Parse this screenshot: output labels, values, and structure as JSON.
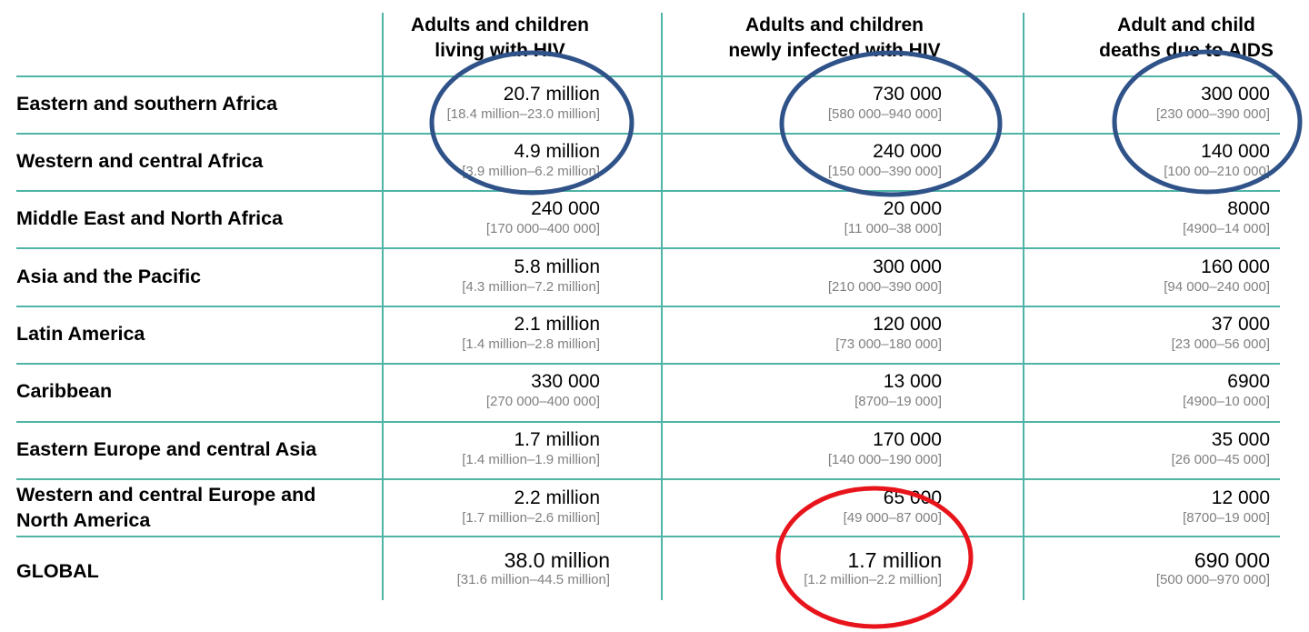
{
  "headers": [
    [
      "Adults and children",
      "living with HIV"
    ],
    [
      "Adults and children",
      "newly infected with HIV"
    ],
    [
      "Adult and child",
      "deaths due to AIDS"
    ]
  ],
  "rows": [
    {
      "label": [
        "Eastern and southern Africa"
      ],
      "cells": [
        [
          "20.7 million",
          "[18.4 million–23.0 million]"
        ],
        [
          "730 000",
          "[580 000–940 000]"
        ],
        [
          "300 000",
          "[230 000–390 000]"
        ]
      ]
    },
    {
      "label": [
        "Western and central Africa"
      ],
      "cells": [
        [
          "4.9 million",
          "[3.9 million–6.2 million]"
        ],
        [
          "240 000",
          "[150 000–390 000]"
        ],
        [
          "140 000",
          "[100 00–210 000]"
        ]
      ]
    },
    {
      "label": [
        "Middle East and North Africa"
      ],
      "cells": [
        [
          "240 000",
          "[170 000–400 000]"
        ],
        [
          "20 000",
          "[11 000–38 000]"
        ],
        [
          "8000",
          "[4900–14 000]"
        ]
      ]
    },
    {
      "label": [
        "Asia and the Pacific"
      ],
      "cells": [
        [
          "5.8 million",
          "[4.3 million–7.2 million]"
        ],
        [
          "300 000",
          "[210 000–390 000]"
        ],
        [
          "160 000",
          "[94 000–240 000]"
        ]
      ]
    },
    {
      "label": [
        "Latin America"
      ],
      "cells": [
        [
          "2.1 million",
          "[1.4 million–2.8 million]"
        ],
        [
          "120 000",
          "[73 000–180 000]"
        ],
        [
          "37 000",
          "[23 000–56 000]"
        ]
      ]
    },
    {
      "label": [
        "Caribbean"
      ],
      "cells": [
        [
          "330 000",
          "[270 000–400 000]"
        ],
        [
          "13 000",
          "[8700–19 000]"
        ],
        [
          "6900",
          "[4900–10 000]"
        ]
      ]
    },
    {
      "label": [
        "Eastern Europe and central Asia"
      ],
      "cells": [
        [
          "1.7 million",
          "[1.4 million–1.9 million]"
        ],
        [
          "170 000",
          "[140 000–190 000]"
        ],
        [
          "35 000",
          "[26 000–45 000]"
        ]
      ]
    },
    {
      "label": [
        "Western and central Europe and",
        "North America"
      ],
      "cells": [
        [
          "2.2 million",
          "[1.7 million–2.6 million]"
        ],
        [
          "65 000",
          "[49 000–87 000]"
        ],
        [
          "12 000",
          "[8700–19 000]"
        ]
      ]
    },
    {
      "label": [
        "GLOBAL"
      ],
      "cells": [
        [
          "38.0 million",
          "[31.6 million–44.5 million]"
        ],
        [
          "1.7 million",
          "[1.2 million–2.2 million]"
        ],
        [
          "690 000",
          "[500 000–970 000]"
        ]
      ]
    }
  ],
  "colors": {
    "grid": "#4fb3a6",
    "annotation_blue": "#2f5289",
    "annotation_red": "#e8141b",
    "range_text": "#808080"
  }
}
